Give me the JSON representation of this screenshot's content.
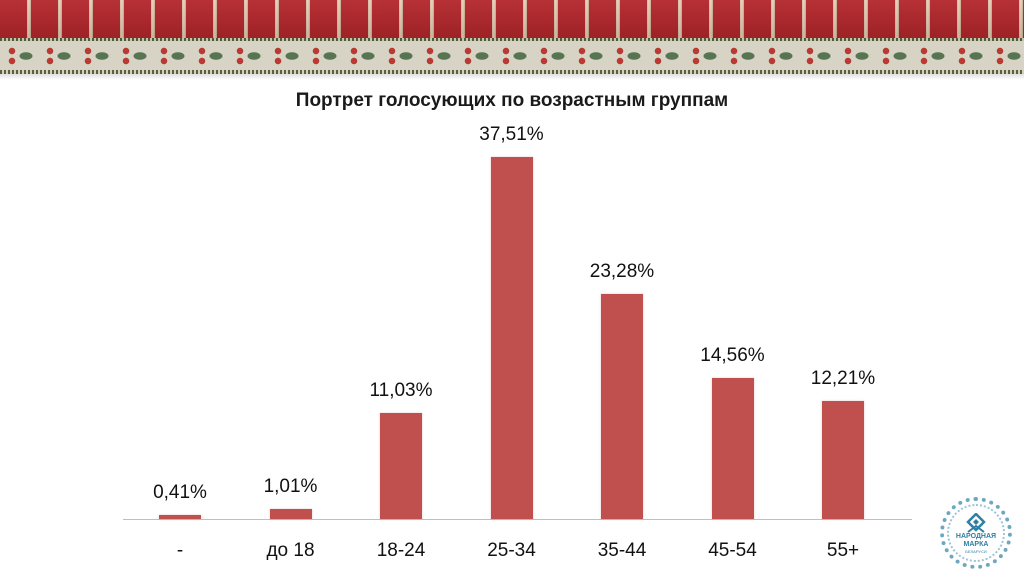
{
  "banner": {
    "description": "decorative red striped embroidered ribbon with floral band",
    "colors": {
      "red": "#b3262b",
      "band": "#d7d4c6",
      "flower": "#b83a33",
      "leaf": "#4a6a46"
    }
  },
  "title": "Портрет голосующих по возрастным группам",
  "chart_data": {
    "type": "bar",
    "title": "Портрет голосующих по возрастным группам",
    "xlabel": "",
    "ylabel": "",
    "categories": [
      "-",
      "до 18",
      "18-24",
      "25-34",
      "35-44",
      "45-54",
      "55+"
    ],
    "values": [
      0.41,
      1.01,
      11.03,
      37.51,
      23.28,
      14.56,
      12.21
    ],
    "data_labels": [
      "0,41%",
      "1,01%",
      "11,03%",
      "37,51%",
      "23,28%",
      "14,56%",
      "12,21%"
    ],
    "unit": "%",
    "ylim": [
      0,
      40
    ],
    "grid": false,
    "legend": "none",
    "bar_color": "#c0504d"
  },
  "logo": {
    "line1": "НАРОДНАЯ",
    "line2": "МАРКА",
    "line3": "БЕЛАРУСИ",
    "color": "#2f7fa3"
  }
}
